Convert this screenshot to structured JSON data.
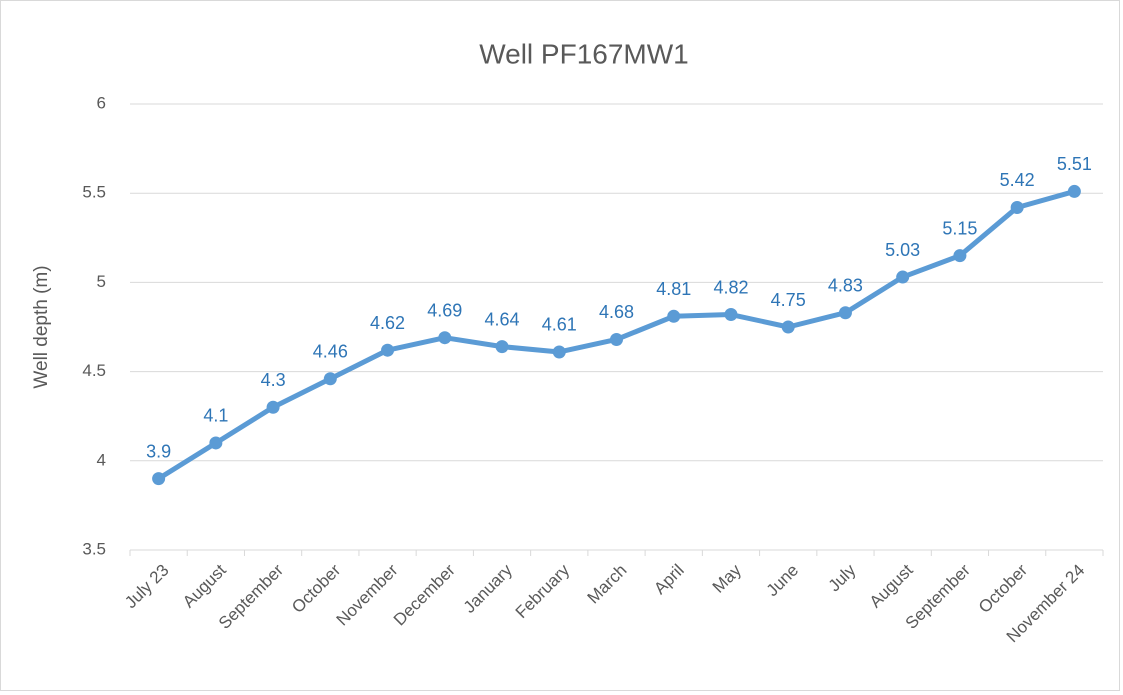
{
  "chart_data": {
    "type": "line",
    "title": "Well PF167MW1",
    "ylabel": "Well depth (m)",
    "categories": [
      "July 23",
      "August",
      "September",
      "October",
      "November",
      "December",
      "January",
      "February",
      "March",
      "April",
      "May",
      "June",
      "July",
      "August",
      "September",
      "October",
      "November 24"
    ],
    "series": [
      {
        "name": "Well depth (m)",
        "color": "#5b9bd5",
        "values": [
          3.9,
          4.1,
          4.3,
          4.46,
          4.62,
          4.69,
          4.64,
          4.61,
          4.68,
          4.81,
          4.82,
          4.75,
          4.83,
          5.03,
          5.15,
          5.42,
          5.51
        ]
      }
    ],
    "ylim": [
      3.5,
      6
    ],
    "yticks": [
      3.5,
      4,
      4.5,
      5,
      5.5,
      6
    ],
    "grid": true
  }
}
